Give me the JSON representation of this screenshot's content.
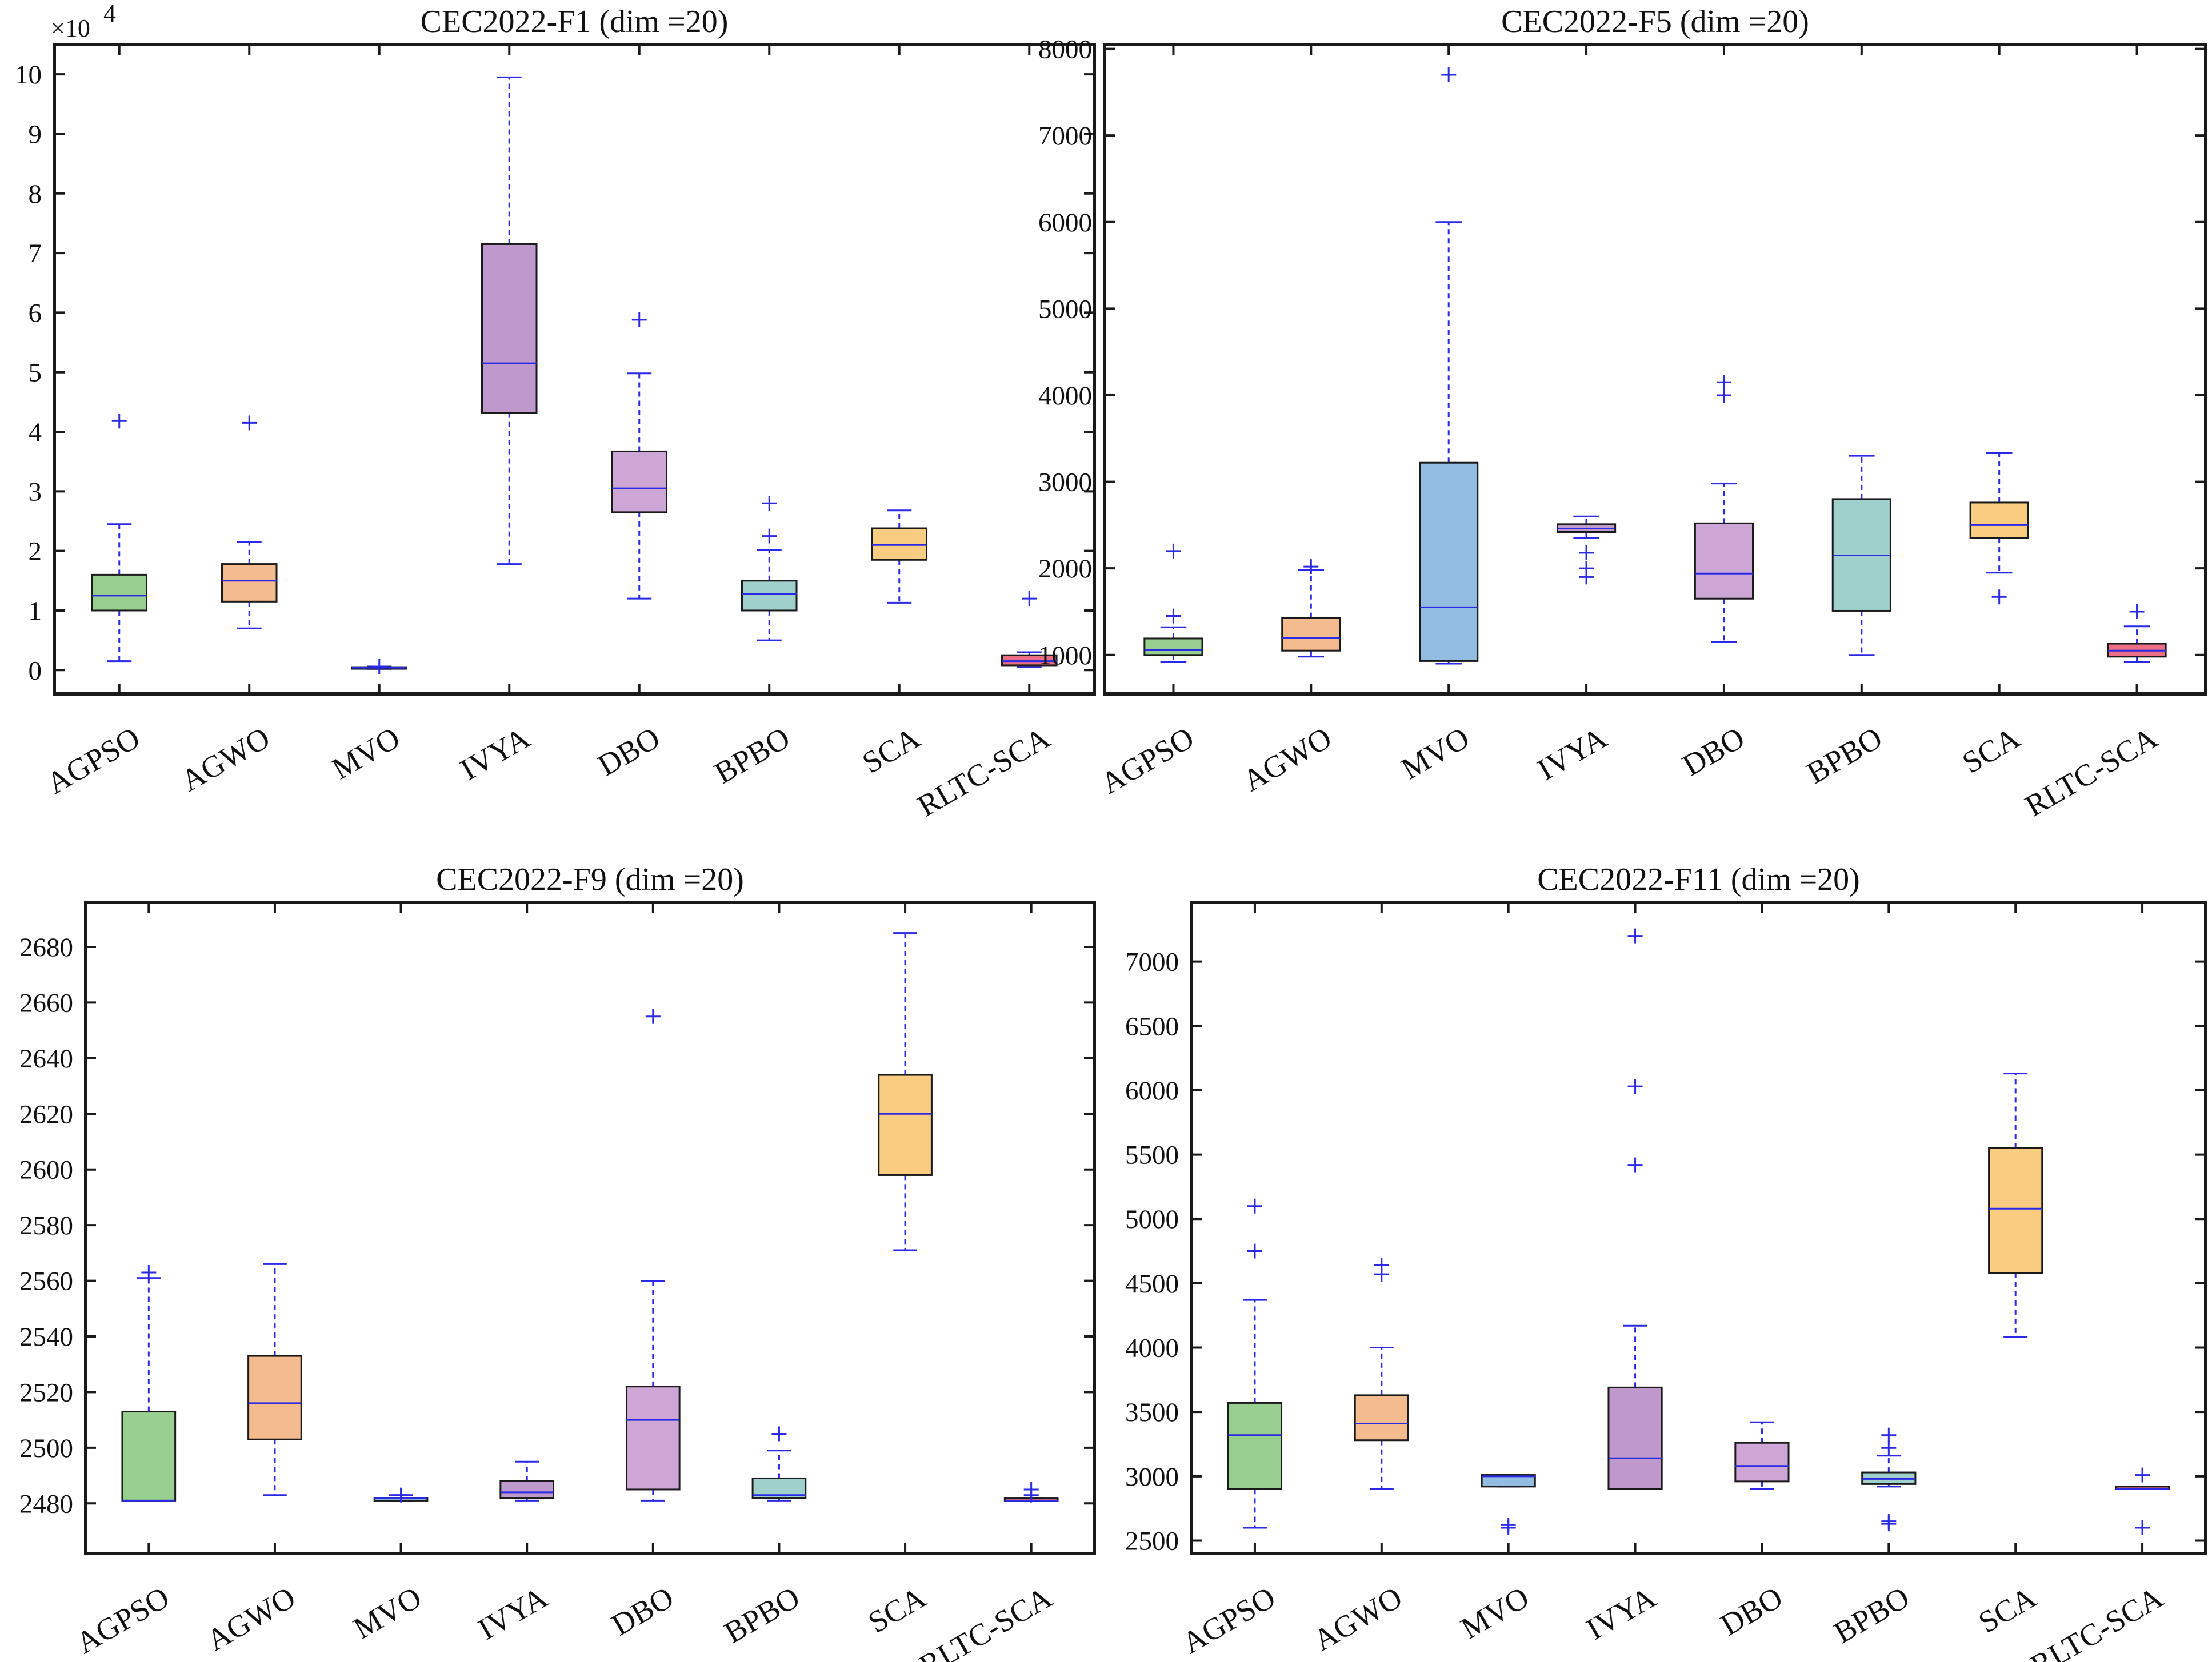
{
  "colors": {
    "AGPSO": "#97cf8f",
    "AGWO": "#f4bb8e",
    "MVO": "#92bde0",
    "IVYA": "#bf98cc",
    "DBO": "#cea6d6",
    "BPBO": "#9fd0cc",
    "SCA": "#f8cd82",
    "RLTC-SCA": "#ec6e84",
    "whisker": "#2a2ae6",
    "median": "#2a2ae6",
    "outlier": "#2a2ae6"
  },
  "chart_data": [
    {
      "type": "boxplot",
      "title": "CEC2022-F1 (dim =20)",
      "categories": [
        "AGPSO",
        "AGWO",
        "MVO",
        "IVYA",
        "DBO",
        "BPBO",
        "SCA",
        "RLTC-SCA"
      ],
      "ylim": [
        -4000,
        105000
      ],
      "yticks": [
        0,
        10000,
        20000,
        30000,
        40000,
        50000,
        60000,
        70000,
        80000,
        90000,
        100000
      ],
      "ytick_labels": [
        "0",
        "1",
        "2",
        "3",
        "4",
        "5",
        "6",
        "7",
        "8",
        "9",
        "10"
      ],
      "y_exponent_label": "×10",
      "y_exponent_power": "4",
      "boxes": [
        {
          "name": "AGPSO",
          "lower_whisker": 1500,
          "q1": 10000,
          "median": 12500,
          "q3": 16000,
          "upper_whisker": 24500,
          "outliers": [
            41800
          ]
        },
        {
          "name": "AGWO",
          "lower_whisker": 7000,
          "q1": 11500,
          "median": 15000,
          "q3": 17800,
          "upper_whisker": 21500,
          "outliers": [
            41500
          ]
        },
        {
          "name": "MVO",
          "lower_whisker": 200,
          "q1": 300,
          "median": 400,
          "q3": 500,
          "upper_whisker": 600,
          "outliers": [
            600
          ]
        },
        {
          "name": "IVYA",
          "lower_whisker": 17800,
          "q1": 43200,
          "median": 51500,
          "q3": 71500,
          "upper_whisker": 99500,
          "outliers": []
        },
        {
          "name": "DBO",
          "lower_whisker": 12000,
          "q1": 26500,
          "median": 30500,
          "q3": 36700,
          "upper_whisker": 49800,
          "outliers": [
            58800
          ]
        },
        {
          "name": "BPBO",
          "lower_whisker": 5000,
          "q1": 10000,
          "median": 12800,
          "q3": 15000,
          "upper_whisker": 20200,
          "outliers": [
            22500,
            28000
          ]
        },
        {
          "name": "SCA",
          "lower_whisker": 11300,
          "q1": 18500,
          "median": 21000,
          "q3": 23800,
          "upper_whisker": 26800,
          "outliers": []
        },
        {
          "name": "RLTC-SCA",
          "lower_whisker": 500,
          "q1": 800,
          "median": 1500,
          "q3": 2500,
          "upper_whisker": 3000,
          "outliers": [
            12000
          ]
        }
      ]
    },
    {
      "type": "boxplot",
      "title": "CEC2022-F5 (dim =20)",
      "categories": [
        "AGPSO",
        "AGWO",
        "MVO",
        "IVYA",
        "DBO",
        "BPBO",
        "SCA",
        "RLTC-SCA"
      ],
      "ylim": [
        550,
        8050
      ],
      "yticks": [
        1000,
        2000,
        3000,
        4000,
        5000,
        6000,
        7000,
        8000
      ],
      "ytick_labels": [
        "1000",
        "2000",
        "3000",
        "4000",
        "5000",
        "6000",
        "7000",
        "8000"
      ],
      "boxes": [
        {
          "name": "AGPSO",
          "lower_whisker": 920,
          "q1": 1000,
          "median": 1060,
          "q3": 1190,
          "upper_whisker": 1320,
          "outliers": [
            1450,
            2200
          ]
        },
        {
          "name": "AGWO",
          "lower_whisker": 980,
          "q1": 1050,
          "median": 1200,
          "q3": 1430,
          "upper_whisker": 1980,
          "outliers": [
            2020
          ]
        },
        {
          "name": "MVO",
          "lower_whisker": 900,
          "q1": 930,
          "median": 1550,
          "q3": 3220,
          "upper_whisker": 6000,
          "outliers": [
            7700
          ]
        },
        {
          "name": "IVYA",
          "lower_whisker": 2350,
          "q1": 2420,
          "median": 2460,
          "q3": 2510,
          "upper_whisker": 2600,
          "outliers": [
            1900,
            2000,
            2180
          ]
        },
        {
          "name": "DBO",
          "lower_whisker": 1150,
          "q1": 1650,
          "median": 1940,
          "q3": 2520,
          "upper_whisker": 2980,
          "outliers": [
            4000,
            4150
          ]
        },
        {
          "name": "BPBO",
          "lower_whisker": 1000,
          "q1": 1510,
          "median": 2150,
          "q3": 2800,
          "upper_whisker": 3300,
          "outliers": []
        },
        {
          "name": "SCA",
          "lower_whisker": 1950,
          "q1": 2350,
          "median": 2500,
          "q3": 2760,
          "upper_whisker": 3330,
          "outliers": [
            1670
          ]
        },
        {
          "name": "RLTC-SCA",
          "lower_whisker": 920,
          "q1": 980,
          "median": 1050,
          "q3": 1130,
          "upper_whisker": 1330,
          "outliers": [
            1500
          ]
        }
      ]
    },
    {
      "type": "boxplot",
      "title": "CEC2022-F9 (dim =20)",
      "categories": [
        "AGPSO",
        "AGWO",
        "MVO",
        "IVYA",
        "DBO",
        "BPBO",
        "SCA",
        "RLTC-SCA"
      ],
      "ylim": [
        2462,
        2696
      ],
      "yticks": [
        2480,
        2500,
        2520,
        2540,
        2560,
        2580,
        2600,
        2620,
        2640,
        2660,
        2680
      ],
      "ytick_labels": [
        "2480",
        "2500",
        "2520",
        "2540",
        "2560",
        "2580",
        "2600",
        "2620",
        "2640",
        "2660",
        "2680"
      ],
      "boxes": [
        {
          "name": "AGPSO",
          "lower_whisker": 2481,
          "q1": 2481,
          "median": 2481,
          "q3": 2513,
          "upper_whisker": 2561,
          "outliers": [
            2563
          ]
        },
        {
          "name": "AGWO",
          "lower_whisker": 2483,
          "q1": 2503,
          "median": 2516,
          "q3": 2533,
          "upper_whisker": 2566,
          "outliers": []
        },
        {
          "name": "MVO",
          "lower_whisker": 2481,
          "q1": 2481,
          "median": 2482,
          "q3": 2482,
          "upper_whisker": 2483,
          "outliers": [
            2483
          ]
        },
        {
          "name": "IVYA",
          "lower_whisker": 2481,
          "q1": 2482,
          "median": 2484,
          "q3": 2488,
          "upper_whisker": 2495,
          "outliers": []
        },
        {
          "name": "DBO",
          "lower_whisker": 2481,
          "q1": 2485,
          "median": 2510,
          "q3": 2522,
          "upper_whisker": 2560,
          "outliers": [
            2655
          ]
        },
        {
          "name": "BPBO",
          "lower_whisker": 2481,
          "q1": 2482,
          "median": 2483,
          "q3": 2489,
          "upper_whisker": 2499,
          "outliers": [
            2505
          ]
        },
        {
          "name": "SCA",
          "lower_whisker": 2571,
          "q1": 2598,
          "median": 2620,
          "q3": 2634,
          "upper_whisker": 2685,
          "outliers": []
        },
        {
          "name": "RLTC-SCA",
          "lower_whisker": 2481,
          "q1": 2481,
          "median": 2481,
          "q3": 2482,
          "upper_whisker": 2482,
          "outliers": [
            2483,
            2485
          ]
        }
      ]
    },
    {
      "type": "boxplot",
      "title": "CEC2022-F11 (dim =20)",
      "categories": [
        "AGPSO",
        "AGWO",
        "MVO",
        "IVYA",
        "DBO",
        "BPBO",
        "SCA",
        "RLTC-SCA"
      ],
      "ylim": [
        2400,
        7460
      ],
      "yticks": [
        2500,
        3000,
        3500,
        4000,
        4500,
        5000,
        5500,
        6000,
        6500,
        7000
      ],
      "ytick_labels": [
        "2500",
        "3000",
        "3500",
        "4000",
        "4500",
        "5000",
        "5500",
        "6000",
        "6500",
        "7000"
      ],
      "boxes": [
        {
          "name": "AGPSO",
          "lower_whisker": 2600,
          "q1": 2900,
          "median": 3320,
          "q3": 3570,
          "upper_whisker": 4370,
          "outliers": [
            4750,
            5100
          ]
        },
        {
          "name": "AGWO",
          "lower_whisker": 2900,
          "q1": 3280,
          "median": 3410,
          "q3": 3630,
          "upper_whisker": 4000,
          "outliers": [
            4570,
            4640
          ]
        },
        {
          "name": "MVO",
          "lower_whisker": 2920,
          "q1": 2920,
          "median": 3000,
          "q3": 3010,
          "upper_whisker": 3010,
          "outliers": [
            2600,
            2620
          ]
        },
        {
          "name": "IVYA",
          "lower_whisker": 2900,
          "q1": 2900,
          "median": 3140,
          "q3": 3690,
          "upper_whisker": 4170,
          "outliers": [
            5420,
            6030,
            7200
          ]
        },
        {
          "name": "DBO",
          "lower_whisker": 2900,
          "q1": 2960,
          "median": 3080,
          "q3": 3260,
          "upper_whisker": 3420,
          "outliers": []
        },
        {
          "name": "BPBO",
          "lower_whisker": 2920,
          "q1": 2940,
          "median": 2980,
          "q3": 3030,
          "upper_whisker": 3160,
          "outliers": [
            2630,
            2650,
            3220,
            3320
          ]
        },
        {
          "name": "SCA",
          "lower_whisker": 4080,
          "q1": 4580,
          "median": 5080,
          "q3": 5550,
          "upper_whisker": 6130,
          "outliers": []
        },
        {
          "name": "RLTC-SCA",
          "lower_whisker": 2900,
          "q1": 2900,
          "median": 2900,
          "q3": 2920,
          "upper_whisker": 2920,
          "outliers": [
            2600,
            3010
          ]
        }
      ]
    }
  ]
}
